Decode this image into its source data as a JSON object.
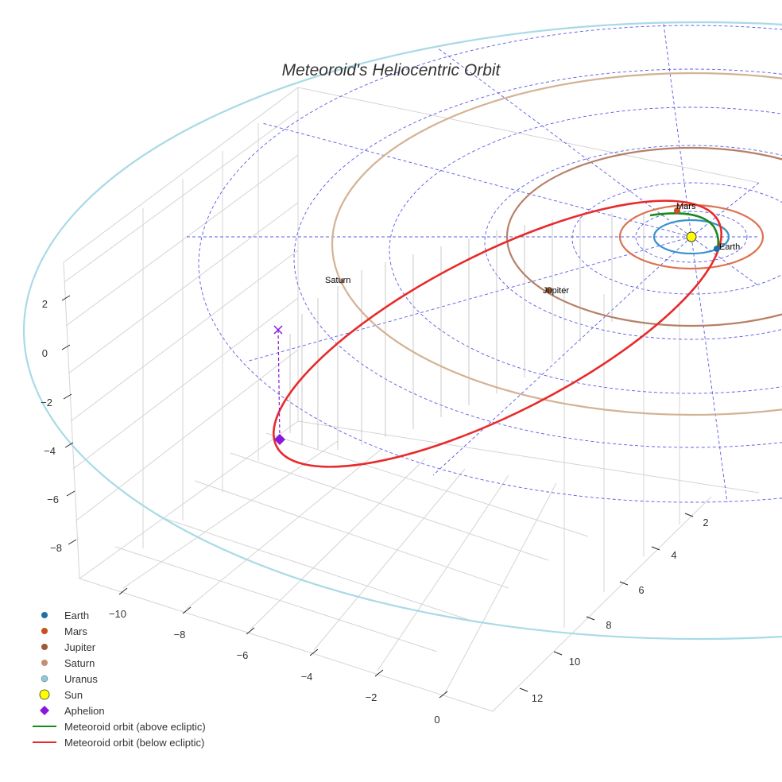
{
  "chart_data": {
    "type": "scatter3d",
    "title": "Meteoroid's Heliocentric Orbit",
    "x_ticks": [
      "−10",
      "−8",
      "−6",
      "−4",
      "−2",
      "0"
    ],
    "y_ticks": [
      "2",
      "4",
      "6",
      "8",
      "10",
      "12"
    ],
    "z_ticks": [
      "2",
      "0",
      "−2",
      "−4",
      "−6",
      "−8"
    ],
    "legend_position": "bottom-left",
    "planet_labels": [
      "Mars",
      "Earth",
      "Jupiter",
      "Saturn"
    ],
    "legend": [
      {
        "name": "Earth",
        "marker": "circle",
        "color": "#1f6fa8"
      },
      {
        "name": "Mars",
        "marker": "circle",
        "color": "#c8501e"
      },
      {
        "name": "Jupiter",
        "marker": "circle",
        "color": "#9a5a3c"
      },
      {
        "name": "Saturn",
        "marker": "circle",
        "color": "#c09070"
      },
      {
        "name": "Uranus",
        "marker": "circle",
        "color": "#8ccbdc"
      },
      {
        "name": "Sun",
        "marker": "circle-large",
        "color": "#ffff00"
      },
      {
        "name": "Aphelion",
        "marker": "diamond",
        "color": "#8a18d8"
      },
      {
        "name": "Meteoroid orbit (above ecliptic)",
        "marker": "line",
        "color": "#1a8a1a"
      },
      {
        "name": "Meteoroid orbit (below ecliptic)",
        "marker": "line",
        "color": "#e82a2a"
      }
    ],
    "orbit_colors": {
      "earth": "#3a92cc",
      "mars": "#dc7250",
      "jupiter": "#b68068",
      "saturn": "#d4b294",
      "uranus": "#a8dae6"
    }
  }
}
